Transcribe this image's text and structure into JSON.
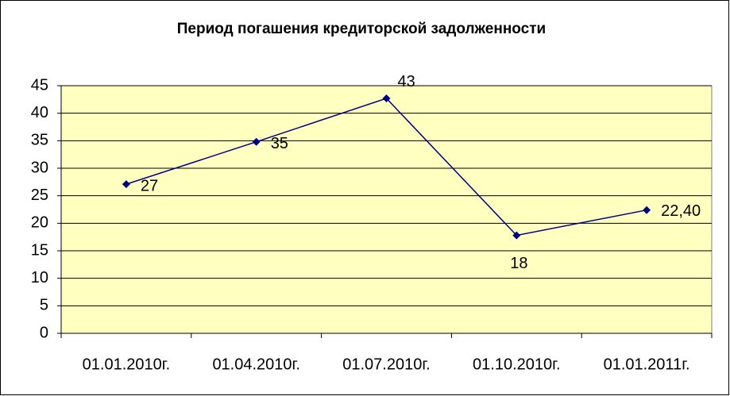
{
  "chart_data": {
    "type": "line",
    "title": "Период погашения кредиторской задолженности",
    "categories": [
      "01.01.2010г.",
      "01.04.2010г.",
      "01.07.2010г.",
      "01.10.2010г.",
      "01.01.2011г."
    ],
    "values": [
      27.1,
      34.8,
      42.7,
      17.8,
      22.4
    ],
    "value_labels": [
      "27",
      "35",
      "43",
      "18",
      "22,40"
    ],
    "color": "#000080",
    "ylim": [
      0,
      45
    ],
    "yticks": [
      0,
      5,
      10,
      15,
      20,
      25,
      30,
      35,
      40,
      45
    ],
    "grid": true
  }
}
